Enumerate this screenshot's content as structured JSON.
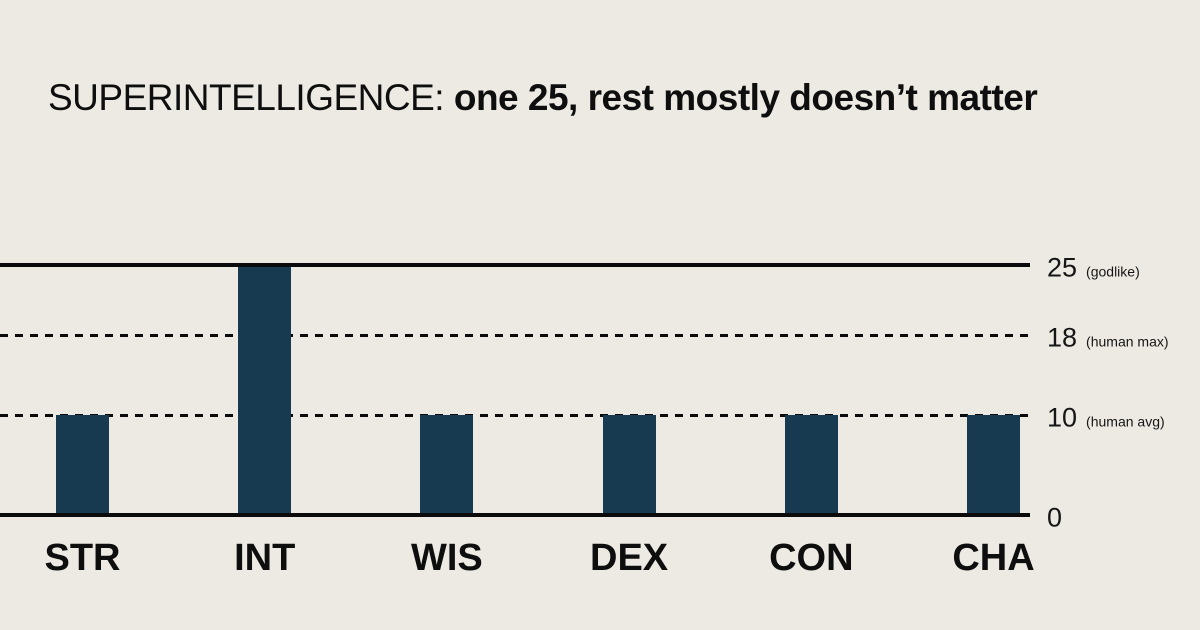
{
  "title": {
    "prefix": "SUPERINTELLIGENCE:",
    "rest": "one 25, rest mostly doesn’t matter"
  },
  "chart_data": {
    "type": "bar",
    "title": "SUPERINTELLIGENCE: one 25, rest mostly doesn’t matter",
    "categories": [
      "STR",
      "INT",
      "WIS",
      "DEX",
      "CON",
      "CHA"
    ],
    "values": [
      10,
      25,
      10,
      10,
      10,
      10
    ],
    "xlabel": "",
    "ylabel": "",
    "ylim": [
      0,
      25
    ],
    "legend": "none",
    "grid": "horizontal-reference-lines-only",
    "gridlines": [
      {
        "value": 25,
        "label": "25",
        "annotation": "(godlike)",
        "style": "solid"
      },
      {
        "value": 18,
        "label": "18",
        "annotation": "(human max)",
        "style": "dashed"
      },
      {
        "value": 10,
        "label": "10",
        "annotation": "(human avg)",
        "style": "dashed"
      },
      {
        "value": 0,
        "label": "0",
        "annotation": "",
        "style": "solid"
      }
    ],
    "colors": {
      "bar": "#173A50",
      "background": "#ECEAE2",
      "line": "#0B0B0B",
      "text": "#0E0E0E"
    }
  }
}
